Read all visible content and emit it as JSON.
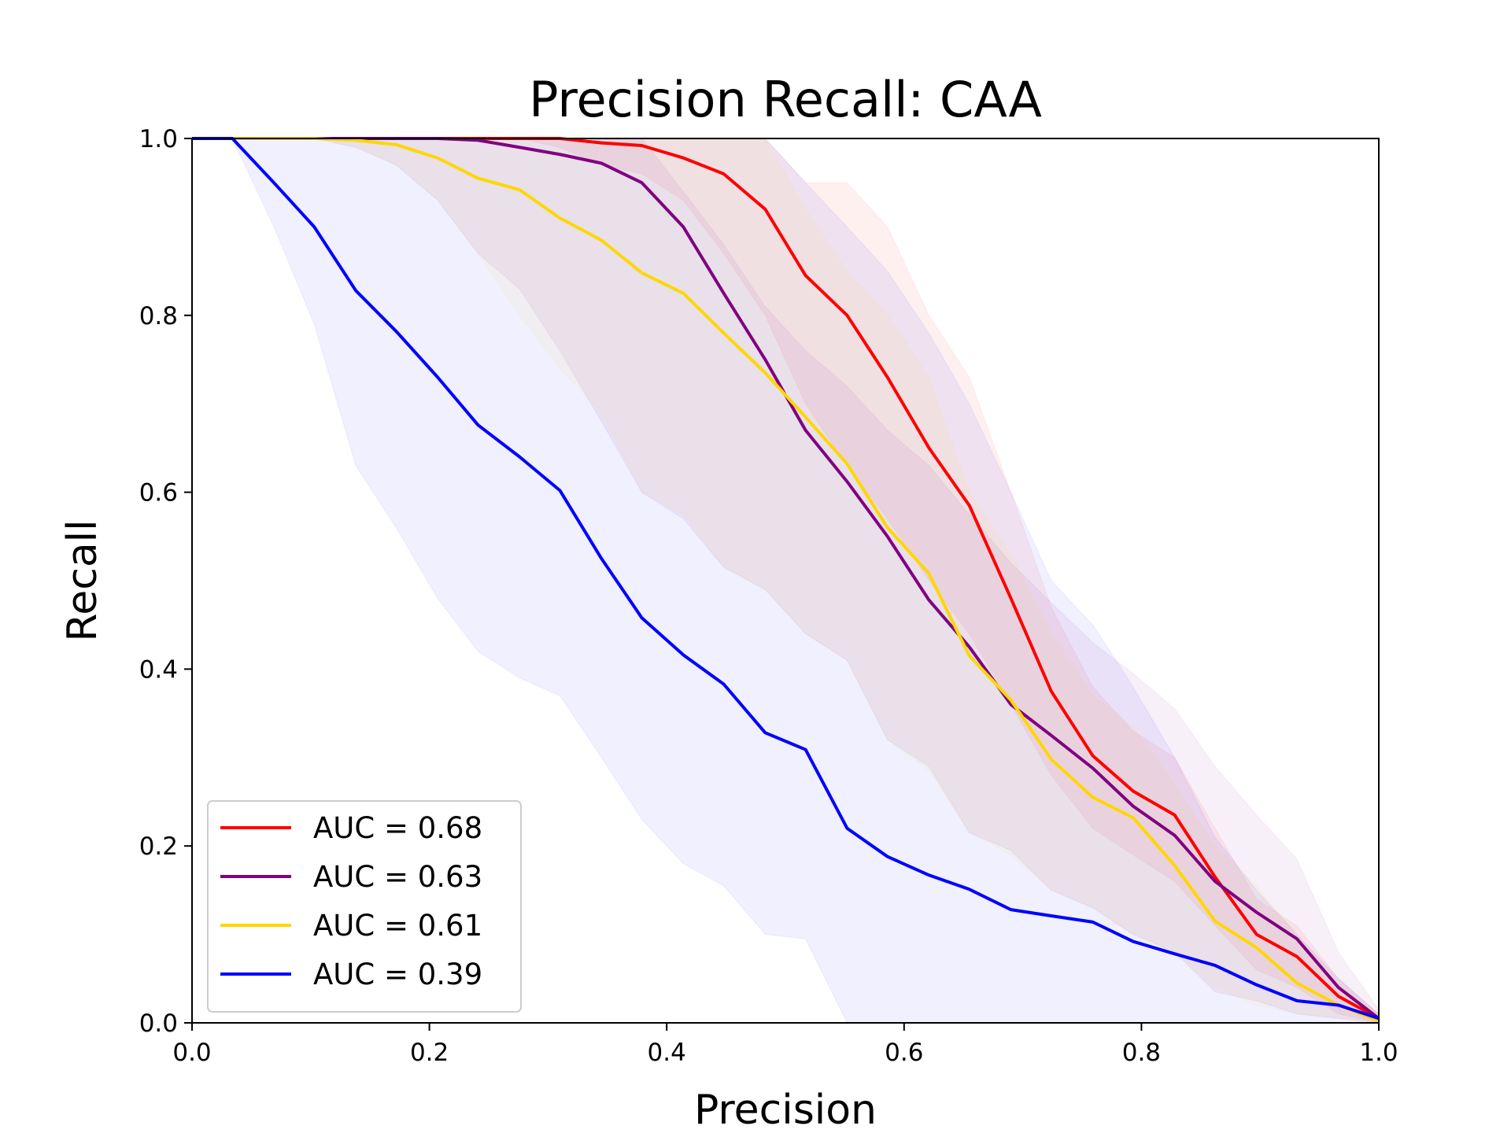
{
  "chart_data": {
    "type": "line",
    "title": "Precision Recall: CAA",
    "xlabel": "Precision",
    "ylabel": "Recall",
    "xlim": [
      0.0,
      1.0
    ],
    "ylim": [
      0.0,
      1.0
    ],
    "xticks": [
      "0.0",
      "0.2",
      "0.4",
      "0.6",
      "0.8",
      "1.0"
    ],
    "yticks": [
      "0.0",
      "0.2",
      "0.4",
      "0.6",
      "0.8",
      "1.0"
    ],
    "grid": false,
    "legend_placement": "lower-left",
    "x": [
      0.0,
      0.034,
      0.069,
      0.103,
      0.138,
      0.172,
      0.207,
      0.241,
      0.276,
      0.31,
      0.345,
      0.379,
      0.414,
      0.448,
      0.483,
      0.517,
      0.552,
      0.586,
      0.621,
      0.655,
      0.69,
      0.724,
      0.759,
      0.793,
      0.828,
      0.862,
      0.897,
      0.931,
      0.966,
      1.0
    ],
    "series": [
      {
        "name": "AUC = 0.68",
        "color": "#ff0000",
        "values": [
          1.0,
          1.0,
          1.0,
          1.0,
          1.0,
          1.0,
          1.0,
          1.0,
          1.0,
          1.0,
          0.995,
          0.992,
          0.978,
          0.96,
          0.92,
          0.845,
          0.8,
          0.73,
          0.65,
          0.585,
          0.48,
          0.375,
          0.302,
          0.262,
          0.235,
          0.165,
          0.1,
          0.075,
          0.03,
          0.005
        ],
        "band_low": [
          1.0,
          1.0,
          1.0,
          1.0,
          1.0,
          1.0,
          1.0,
          1.0,
          1.0,
          0.99,
          0.97,
          0.96,
          0.93,
          0.87,
          0.8,
          0.7,
          0.63,
          0.57,
          0.5,
          0.44,
          0.36,
          0.28,
          0.22,
          0.19,
          0.16,
          0.11,
          0.06,
          0.04,
          0.01,
          0.0
        ],
        "band_high": [
          1.0,
          1.0,
          1.0,
          1.0,
          1.0,
          1.0,
          1.0,
          1.0,
          1.0,
          1.0,
          1.0,
          1.0,
          1.0,
          1.0,
          1.0,
          0.95,
          0.95,
          0.9,
          0.8,
          0.73,
          0.6,
          0.47,
          0.38,
          0.33,
          0.3,
          0.22,
          0.14,
          0.11,
          0.05,
          0.01
        ]
      },
      {
        "name": "AUC = 0.63",
        "color": "#800080",
        "values": [
          1.0,
          1.0,
          1.0,
          1.0,
          1.0,
          1.0,
          1.0,
          0.998,
          0.99,
          0.982,
          0.972,
          0.95,
          0.9,
          0.825,
          0.75,
          0.67,
          0.612,
          0.55,
          0.478,
          0.425,
          0.36,
          0.325,
          0.288,
          0.245,
          0.212,
          0.16,
          0.125,
          0.095,
          0.04,
          0.005
        ],
        "band_low": [
          1.0,
          1.0,
          1.0,
          1.0,
          0.99,
          0.97,
          0.93,
          0.87,
          0.83,
          0.76,
          0.68,
          0.6,
          0.57,
          0.515,
          0.49,
          0.44,
          0.41,
          0.32,
          0.29,
          0.215,
          0.195,
          0.15,
          0.13,
          0.1,
          0.08,
          0.035,
          0.025,
          0.01,
          0.005,
          0.0
        ],
        "band_high": [
          1.0,
          1.0,
          1.0,
          1.0,
          1.0,
          1.0,
          1.0,
          1.0,
          1.0,
          1.0,
          1.0,
          1.0,
          0.94,
          0.88,
          0.81,
          0.76,
          0.72,
          0.67,
          0.63,
          0.575,
          0.52,
          0.475,
          0.43,
          0.395,
          0.355,
          0.29,
          0.235,
          0.185,
          0.08,
          0.015
        ]
      },
      {
        "name": "AUC = 0.61",
        "color": "#ffd700",
        "values": [
          1.0,
          1.0,
          1.0,
          1.0,
          0.998,
          0.993,
          0.978,
          0.955,
          0.942,
          0.91,
          0.885,
          0.848,
          0.825,
          0.78,
          0.735,
          0.685,
          0.632,
          0.56,
          0.508,
          0.415,
          0.365,
          0.298,
          0.255,
          0.232,
          0.178,
          0.115,
          0.085,
          0.045,
          0.02,
          0.002
        ],
        "band_low": [
          1.0,
          1.0,
          1.0,
          1.0,
          0.99,
          0.97,
          0.93,
          0.87,
          0.8,
          0.74,
          0.69,
          0.6,
          0.575,
          0.515,
          0.49,
          0.44,
          0.41,
          0.32,
          0.285,
          0.215,
          0.19,
          0.15,
          0.13,
          0.1,
          0.08,
          0.04,
          0.02,
          0.01,
          0.005,
          0.0
        ],
        "band_high": [
          1.0,
          1.0,
          1.0,
          1.0,
          1.0,
          1.0,
          1.0,
          1.0,
          1.0,
          1.0,
          1.0,
          1.0,
          1.0,
          1.0,
          1.0,
          0.92,
          0.85,
          0.8,
          0.73,
          0.6,
          0.53,
          0.44,
          0.37,
          0.335,
          0.27,
          0.2,
          0.155,
          0.1,
          0.045,
          0.01
        ]
      },
      {
        "name": "AUC = 0.39",
        "color": "#0000ff",
        "values": [
          1.0,
          1.0,
          0.95,
          0.9,
          0.828,
          0.782,
          0.73,
          0.676,
          0.64,
          0.602,
          0.525,
          0.458,
          0.416,
          0.383,
          0.328,
          0.309,
          0.22,
          0.188,
          0.167,
          0.151,
          0.128,
          0.121,
          0.114,
          0.092,
          0.078,
          0.065,
          0.043,
          0.025,
          0.02,
          0.005
        ],
        "band_low": [
          1.0,
          1.0,
          0.9,
          0.79,
          0.63,
          0.56,
          0.48,
          0.42,
          0.39,
          0.37,
          0.3,
          0.23,
          0.18,
          0.155,
          0.1,
          0.095,
          0.0,
          0.0,
          0.0,
          0.0,
          0.0,
          0.0,
          0.0,
          0.0,
          0.0,
          0.0,
          0.0,
          0.0,
          0.0,
          0.0
        ],
        "band_high": [
          1.0,
          1.0,
          1.0,
          1.0,
          1.0,
          1.0,
          1.0,
          1.0,
          1.0,
          1.0,
          1.0,
          1.0,
          1.0,
          1.0,
          1.0,
          0.95,
          0.9,
          0.85,
          0.78,
          0.7,
          0.6,
          0.5,
          0.45,
          0.38,
          0.3,
          0.21,
          0.15,
          0.1,
          0.05,
          0.01
        ]
      }
    ]
  }
}
